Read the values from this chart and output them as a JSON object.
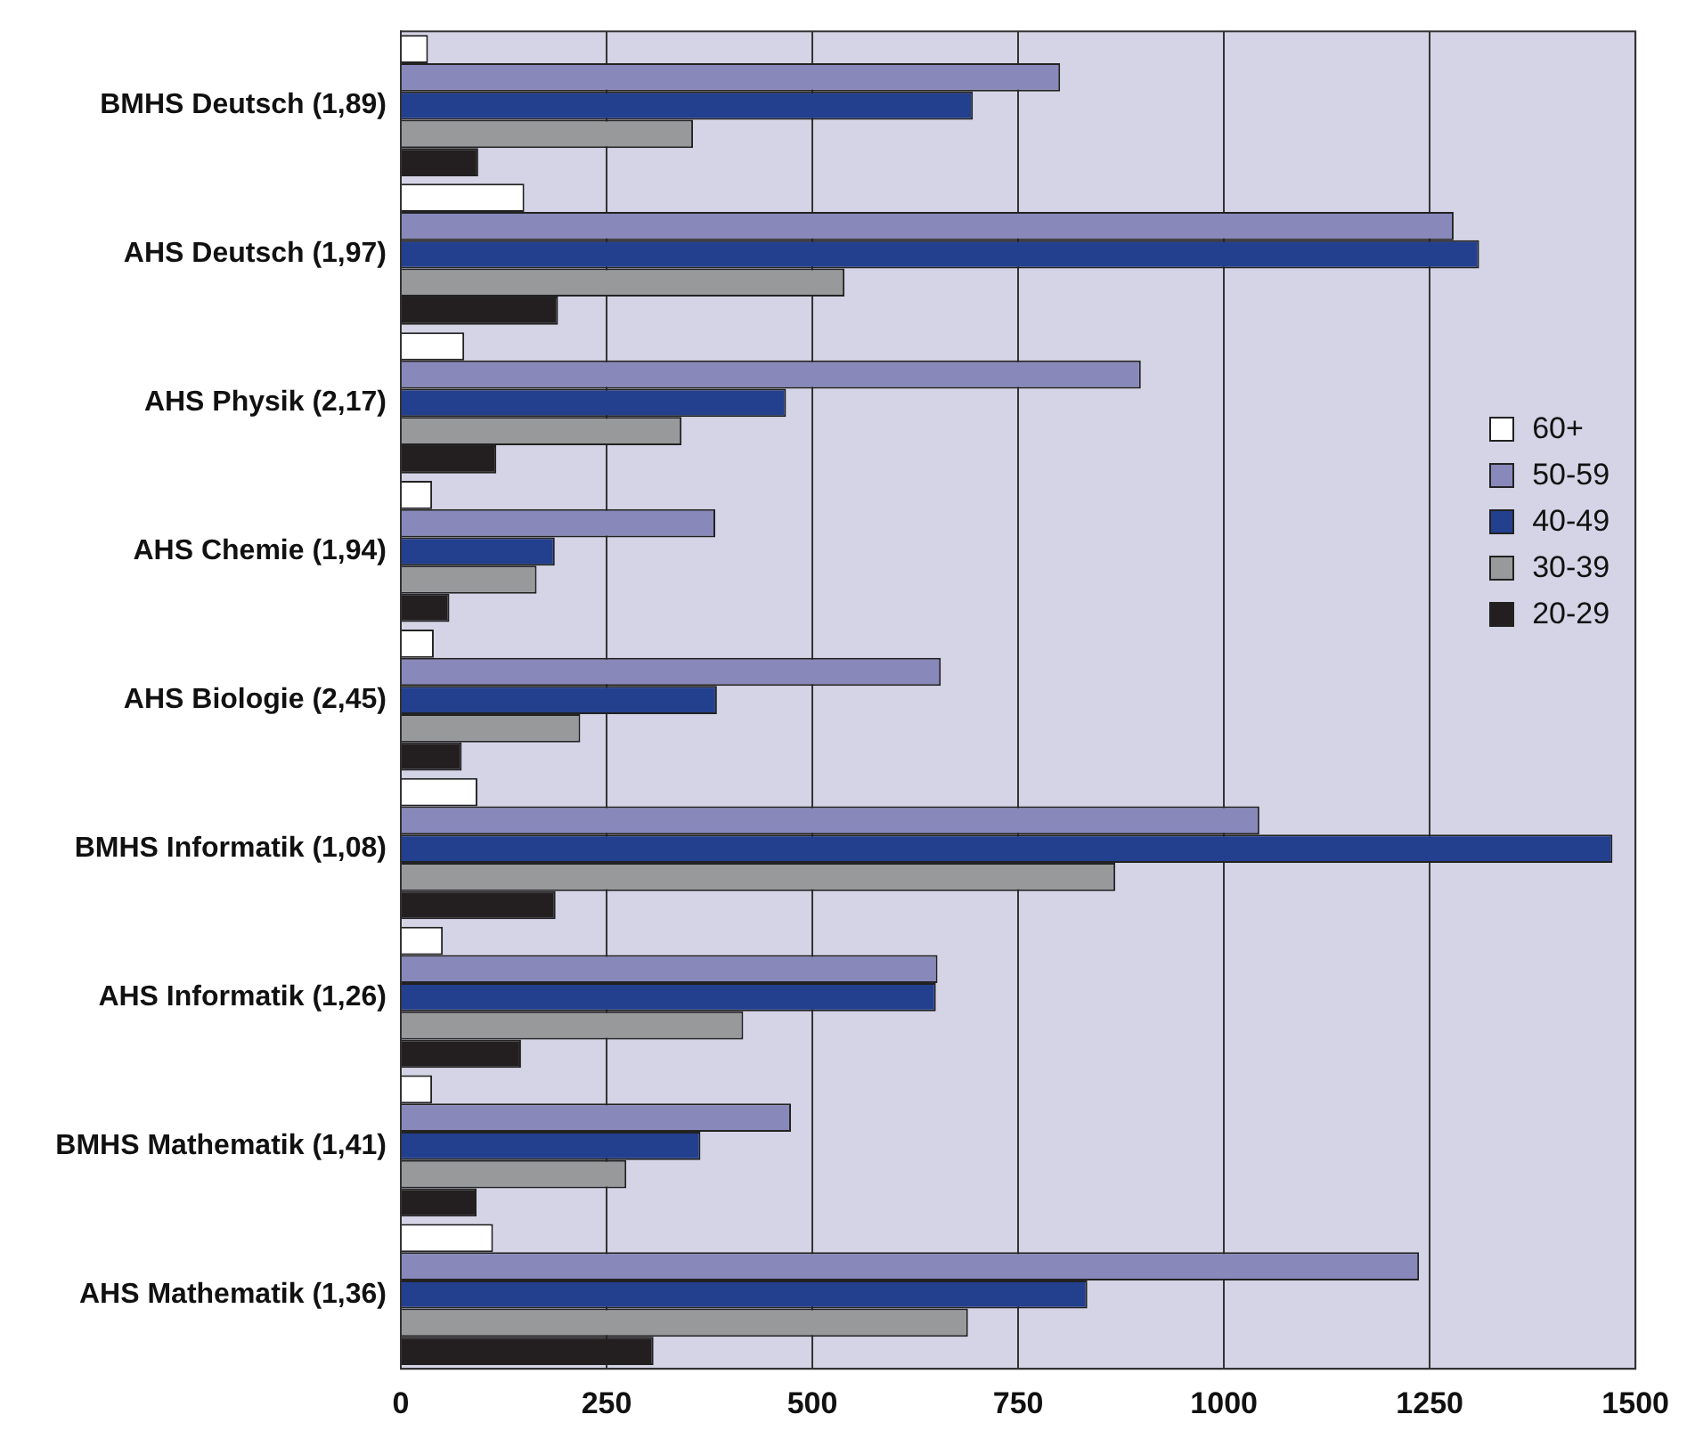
{
  "chart_data": {
    "type": "bar",
    "orientation": "horizontal",
    "categories": [
      "BMHS Deutsch (1,89)",
      "AHS Deutsch (1,97)",
      "AHS Physik (2,17)",
      "AHS Chemie (1,94)",
      "AHS Biologie (2,45)",
      "BMHS Informatik (1,08)",
      "AHS Informatik (1,26)",
      "BMHS Mathematik (1,41)",
      "AHS Mathematik (1,36)"
    ],
    "series": [
      {
        "name": "60+",
        "color": "#ffffff",
        "values": [
          33,
          150,
          77,
          38,
          40,
          93,
          51,
          38,
          112
        ]
      },
      {
        "name": "50-59",
        "color": "#8888bb",
        "values": [
          801,
          1279,
          899,
          382,
          656,
          1043,
          652,
          474,
          1237
        ]
      },
      {
        "name": "40-49",
        "color": "#23408f",
        "values": [
          695,
          1310,
          468,
          187,
          384,
          1472,
          650,
          364,
          834
        ]
      },
      {
        "name": "30-39",
        "color": "#98999b",
        "values": [
          355,
          539,
          341,
          165,
          218,
          868,
          416,
          274,
          689
        ]
      },
      {
        "name": "20-29",
        "color": "#231f20",
        "values": [
          94,
          191,
          116,
          59,
          74,
          188,
          146,
          92,
          307
        ]
      }
    ],
    "xlim": [
      0,
      1500
    ],
    "xticks": [
      0,
      250,
      500,
      750,
      1000,
      1250,
      1500
    ],
    "grid": "x",
    "legend": "right"
  }
}
